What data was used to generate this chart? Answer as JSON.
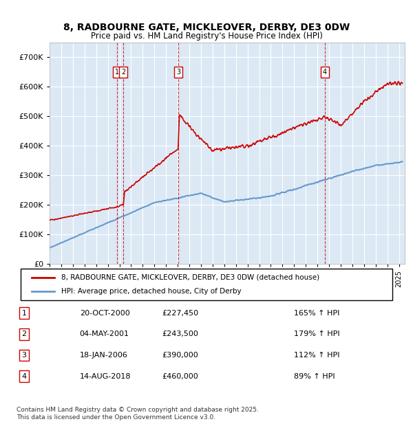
{
  "title_line1": "8, RADBOURNE GATE, MICKLEOVER, DERBY, DE3 0DW",
  "title_line2": "Price paid vs. HM Land Registry's House Price Index (HPI)",
  "ylabel": "£",
  "background_color": "#dce9f5",
  "plot_bg_color": "#dce9f5",
  "legend_label_red": "8, RADBOURNE GATE, MICKLEOVER, DERBY, DE3 0DW (detached house)",
  "legend_label_blue": "HPI: Average price, detached house, City of Derby",
  "footer": "Contains HM Land Registry data © Crown copyright and database right 2025.\nThis data is licensed under the Open Government Licence v3.0.",
  "transactions": [
    {
      "num": 1,
      "date": "20-OCT-2000",
      "price": "£227,450",
      "hpi": "165% ↑ HPI",
      "year": 2000.8
    },
    {
      "num": 2,
      "date": "04-MAY-2001",
      "price": "£243,500",
      "hpi": "179% ↑ HPI",
      "year": 2001.35
    },
    {
      "num": 3,
      "date": "18-JAN-2006",
      "price": "£390,000",
      "hpi": "112% ↑ HPI",
      "year": 2006.05
    },
    {
      "num": 4,
      "date": "14-AUG-2018",
      "price": "£460,000",
      "hpi": "89% ↑ HPI",
      "year": 2018.62
    }
  ],
  "red_line_color": "#cc0000",
  "blue_line_color": "#6699cc",
  "vline_color": "#cc0000",
  "marker_box_color": "#cc0000",
  "ylim": [
    0,
    750000
  ],
  "xlim_start": 1995,
  "xlim_end": 2025.5,
  "yticks": [
    0,
    100000,
    200000,
    300000,
    400000,
    500000,
    600000,
    700000
  ],
  "ytick_labels": [
    "£0",
    "£100K",
    "£200K",
    "£300K",
    "£400K",
    "£500K",
    "£600K",
    "£700K"
  ]
}
